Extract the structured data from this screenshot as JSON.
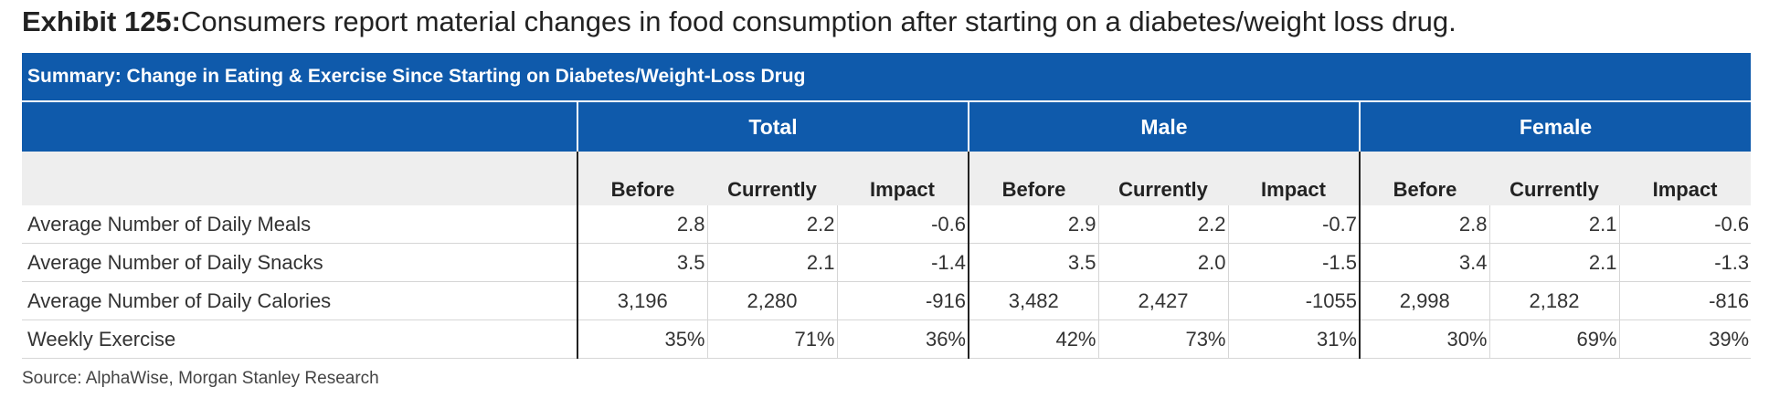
{
  "exhibit": {
    "label": "Exhibit 125:",
    "title": "Consumers report material changes in food consumption after starting on a diabetes/weight loss drug."
  },
  "table": {
    "banner": "Summary: Change in Eating & Exercise Since Starting on Diabetes/Weight-Loss Drug",
    "groups": [
      "Total",
      "Male",
      "Female"
    ],
    "subheads": [
      "Before",
      "Currently",
      "Impact",
      "Before",
      "Currently",
      "Impact",
      "Before",
      "Currently",
      "Impact"
    ],
    "rows": [
      {
        "label": "Average Number of Daily Meals",
        "values": [
          "2.8",
          "2.2",
          "-0.6",
          "2.9",
          "2.2",
          "-0.7",
          "2.8",
          "2.1",
          "-0.6"
        ]
      },
      {
        "label": "Average Number of Daily Snacks",
        "values": [
          "3.5",
          "2.1",
          "-1.4",
          "3.5",
          "2.0",
          "-1.5",
          "3.4",
          "2.1",
          "-1.3"
        ]
      },
      {
        "label": "Average Number of Daily Calories",
        "values": [
          "3,196",
          "2,280",
          "-916",
          "3,482",
          "2,427",
          "-1055",
          "2,998",
          "2,182",
          "-816"
        ]
      },
      {
        "label": "Weekly Exercise",
        "values": [
          "35%",
          "71%",
          "36%",
          "42%",
          "73%",
          "31%",
          "30%",
          "69%",
          "39%"
        ]
      }
    ]
  },
  "source": "Source: AlphaWise, Morgan Stanley Research"
}
